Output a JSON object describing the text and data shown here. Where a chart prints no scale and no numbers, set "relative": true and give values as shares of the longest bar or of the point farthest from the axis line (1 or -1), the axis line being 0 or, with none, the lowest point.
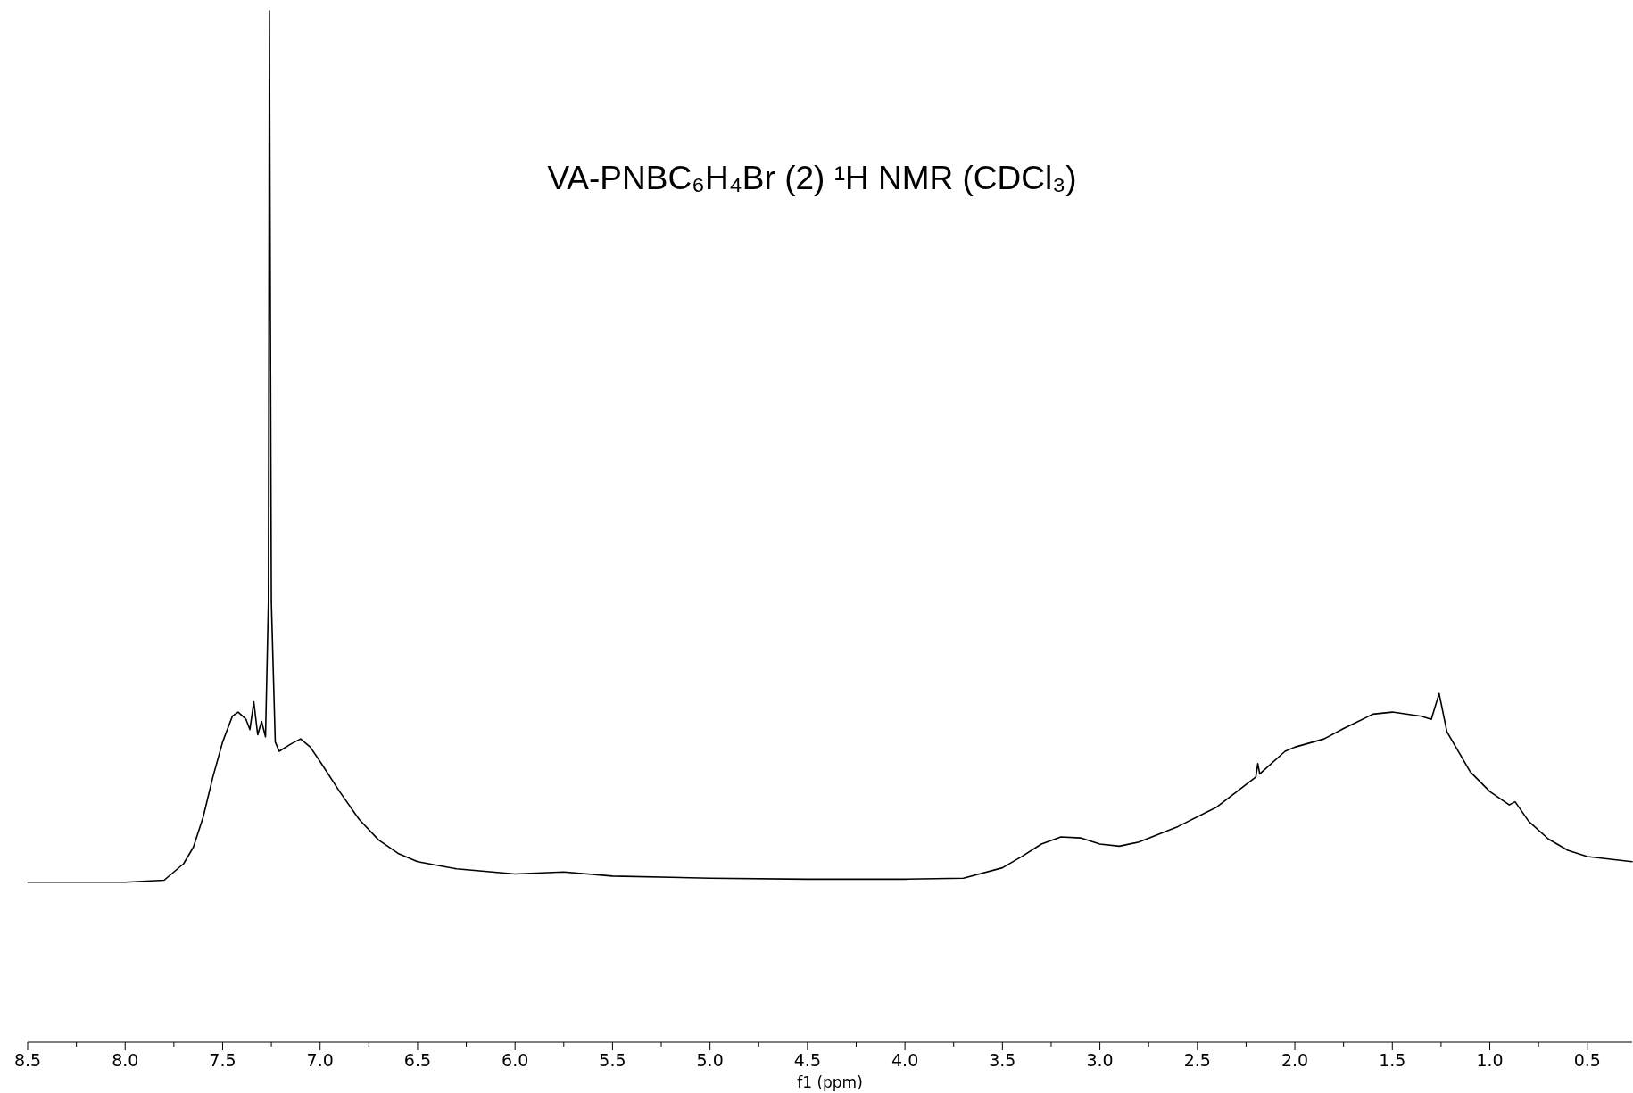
{
  "chart_data": {
    "type": "line",
    "title": "VA-PNBC₆H₄Br (2)   ¹H NMR (CDCl₃)",
    "xlabel": "f1 (ppm)",
    "relative": true,
    "grid": false,
    "marker": "none",
    "xlim": [
      8.5,
      0.27
    ],
    "xticks": [
      8.5,
      {
        "value": 8.25,
        "label": null
      },
      {
        "value": 8,
        "label": "8.0"
      },
      {
        "value": 7.75,
        "label": null
      },
      7.5,
      {
        "value": 7.25,
        "label": null
      },
      {
        "value": 7,
        "label": "7.0"
      },
      {
        "value": 6.75,
        "label": null
      },
      6.5,
      {
        "value": 6.25,
        "label": null
      },
      {
        "value": 6,
        "label": "6.0"
      },
      {
        "value": 5.75,
        "label": null
      },
      5.5,
      {
        "value": 5.25,
        "label": null
      },
      {
        "value": 5,
        "label": "5.0"
      },
      {
        "value": 4.75,
        "label": null
      },
      4.5,
      {
        "value": 4.25,
        "label": null
      },
      {
        "value": 4,
        "label": "4.0"
      },
      {
        "value": 3.75,
        "label": null
      },
      3.5,
      {
        "value": 3.25,
        "label": null
      },
      {
        "value": 3,
        "label": "3.0"
      },
      {
        "value": 2.75,
        "label": null
      },
      2.5,
      {
        "value": 2.25,
        "label": null
      },
      {
        "value": 2,
        "label": "2.0"
      },
      {
        "value": 1.75,
        "label": null
      },
      1.5,
      {
        "value": 1.25,
        "label": null
      },
      {
        "value": 1,
        "label": "1.0"
      },
      {
        "value": 0.75,
        "label": null
      },
      0.5
    ],
    "series": [
      {
        "color": "#000000",
        "x": [
          8.5,
          8.0,
          7.8,
          7.7,
          7.65,
          7.6,
          7.55,
          7.5,
          7.45,
          7.42,
          7.38,
          7.36,
          7.34,
          7.32,
          7.3,
          7.28,
          7.265,
          7.26,
          7.25,
          7.23,
          7.21,
          7.15,
          7.1,
          7.05,
          7.0,
          6.9,
          6.8,
          6.7,
          6.6,
          6.5,
          6.3,
          6.0,
          5.75,
          5.5,
          5.0,
          4.5,
          4.0,
          3.7,
          3.5,
          3.4,
          3.3,
          3.2,
          3.1,
          3.0,
          2.9,
          2.8,
          2.6,
          2.4,
          2.2,
          2.19,
          2.18,
          2.05,
          2.0,
          1.85,
          1.75,
          1.6,
          1.5,
          1.35,
          1.3,
          1.26,
          1.22,
          1.1,
          1.0,
          0.9,
          0.87,
          0.8,
          0.7,
          0.6,
          0.5,
          0.27
        ],
        "values": [
          0.155,
          0.155,
          0.157,
          0.173,
          0.189,
          0.218,
          0.257,
          0.291,
          0.316,
          0.32,
          0.313,
          0.303,
          0.33,
          0.298,
          0.311,
          0.296,
          0.427,
          1,
          0.427,
          0.291,
          0.282,
          0.289,
          0.294,
          0.286,
          0.272,
          0.243,
          0.216,
          0.196,
          0.183,
          0.175,
          0.168,
          0.163,
          0.165,
          0.161,
          0.159,
          0.158,
          0.158,
          0.159,
          0.169,
          0.18,
          0.192,
          0.199,
          0.198,
          0.192,
          0.19,
          0.194,
          0.209,
          0.228,
          0.257,
          0.27,
          0.26,
          0.282,
          0.286,
          0.294,
          0.304,
          0.318,
          0.32,
          0.316,
          0.313,
          0.338,
          0.301,
          0.262,
          0.243,
          0.23,
          0.233,
          0.214,
          0.197,
          0.186,
          0.18,
          0.175
        ]
      }
    ]
  }
}
